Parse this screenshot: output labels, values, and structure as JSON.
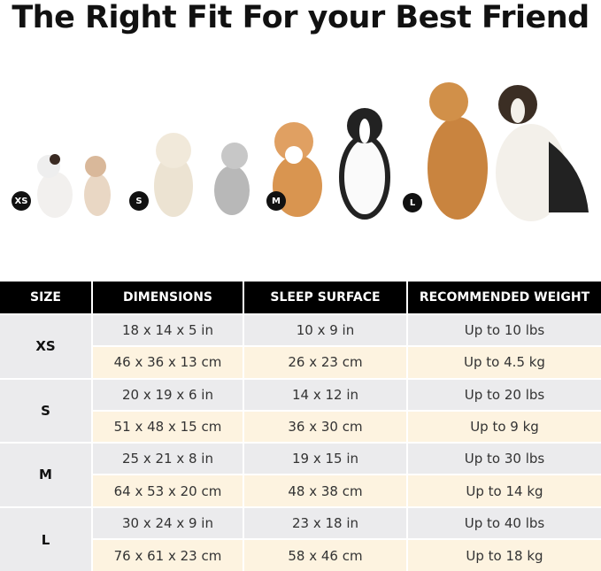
{
  "title": "The Right Fit For your Best Friend",
  "sizes_badges": [
    "XS",
    "S",
    "M",
    "L"
  ],
  "colors": {
    "header": "#000000",
    "row_gray": "#ebebed",
    "row_cream": "#fdf3e0"
  },
  "table": {
    "headers": [
      "SIZE",
      "DIMENSIONS",
      "SLEEP SURFACE",
      "RECOMMENDED WEIGHT"
    ],
    "groups": [
      {
        "size": "XS",
        "rows": [
          [
            "18 x 14 x 5 in",
            "10 x 9 in",
            "Up to 10 lbs"
          ],
          [
            "46 x 36 x 13 cm",
            "26 x 23 cm",
            "Up to 4.5 kg"
          ]
        ]
      },
      {
        "size": "S",
        "rows": [
          [
            "20 x 19 x 6 in",
            "14 x 12 in",
            "Up to 20 lbs"
          ],
          [
            "51 x 48 x 15 cm",
            "36 x 30 cm",
            "Up to 9 kg"
          ]
        ]
      },
      {
        "size": "M",
        "rows": [
          [
            "25 x 21 x 8 in",
            "19 x 15 in",
            "Up to 30 lbs"
          ],
          [
            "64 x 53 x 20 cm",
            "48 x 38 cm",
            "Up to 14 kg"
          ]
        ]
      },
      {
        "size": "L",
        "rows": [
          [
            "30 x 24 x 9 in",
            "23 x 18 in",
            "Up to 40 lbs"
          ],
          [
            "76 x 61 x 23 cm",
            "58 x 46 cm",
            "Up to 18 kg"
          ]
        ]
      }
    ]
  }
}
